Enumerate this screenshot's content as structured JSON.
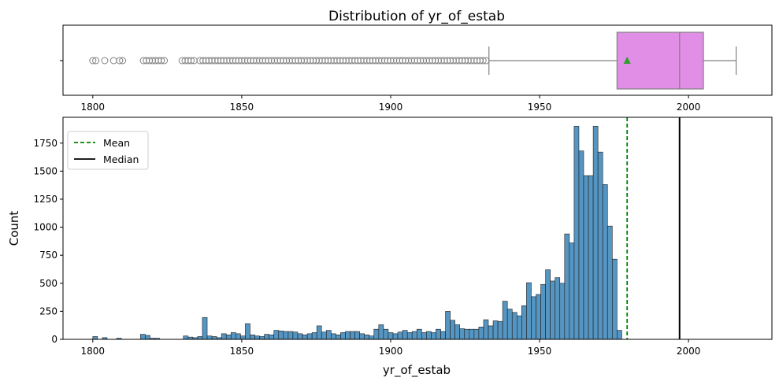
{
  "chart_data": [
    {
      "type": "box",
      "title": "Distribution of yr_of_estab",
      "xlim": [
        1790,
        2028
      ],
      "xticks": [
        1800,
        1850,
        1900,
        1950,
        2000
      ],
      "whisker_low": 1933,
      "q1": 1976,
      "median": 1997,
      "q3": 2005,
      "whisker_high": 2016,
      "mean": 1979.4,
      "outliers": [
        1800,
        1801,
        1804,
        1807,
        1809,
        1810,
        1817,
        1818,
        1819,
        1820,
        1821,
        1822,
        1823,
        1824,
        1830,
        1831,
        1832,
        1833,
        1834,
        1836,
        1837,
        1838,
        1839,
        1840,
        1841,
        1842,
        1843,
        1844,
        1845,
        1846,
        1847,
        1848,
        1849,
        1850,
        1851,
        1852,
        1853,
        1854,
        1855,
        1856,
        1857,
        1858,
        1859,
        1860,
        1861,
        1862,
        1863,
        1864,
        1865,
        1866,
        1867,
        1868,
        1869,
        1870,
        1871,
        1872,
        1873,
        1874,
        1875,
        1876,
        1877,
        1878,
        1879,
        1880,
        1881,
        1882,
        1883,
        1884,
        1885,
        1886,
        1887,
        1888,
        1889,
        1890,
        1891,
        1892,
        1893,
        1894,
        1895,
        1896,
        1897,
        1898,
        1899,
        1900,
        1901,
        1902,
        1903,
        1904,
        1905,
        1906,
        1907,
        1908,
        1909,
        1910,
        1911,
        1912,
        1913,
        1914,
        1915,
        1916,
        1917,
        1918,
        1919,
        1920,
        1921,
        1922,
        1923,
        1924,
        1925,
        1926,
        1927,
        1928,
        1929,
        1930,
        1931,
        1932
      ],
      "box_color": "#e08ee6",
      "mean_marker_color": "#2ca02c",
      "line_color": "#808080"
    },
    {
      "type": "histogram",
      "xlabel": "yr_of_estab",
      "ylabel": "Count",
      "xlim": [
        1790,
        2028
      ],
      "ylim": [
        0,
        1980
      ],
      "xticks": [
        1800,
        1850,
        1900,
        1950,
        2000
      ],
      "yticks": [
        0,
        250,
        500,
        750,
        1000,
        1250,
        1500,
        1750
      ],
      "bin_start": 1800,
      "bin_width": 1.6,
      "counts": [
        25,
        0,
        15,
        0,
        0,
        10,
        0,
        0,
        0,
        0,
        45,
        35,
        10,
        10,
        0,
        0,
        0,
        0,
        0,
        30,
        20,
        15,
        25,
        195,
        30,
        25,
        15,
        50,
        40,
        60,
        50,
        30,
        140,
        40,
        30,
        25,
        45,
        40,
        80,
        75,
        70,
        70,
        65,
        50,
        40,
        50,
        60,
        120,
        65,
        80,
        50,
        40,
        60,
        70,
        70,
        70,
        50,
        40,
        30,
        90,
        130,
        90,
        60,
        50,
        65,
        80,
        60,
        70,
        90,
        60,
        70,
        60,
        90,
        70,
        250,
        170,
        130,
        95,
        90,
        90,
        90,
        110,
        175,
        120,
        165,
        160,
        340,
        270,
        240,
        210,
        300,
        505,
        380,
        400,
        490,
        620,
        520,
        550,
        500,
        940,
        860,
        1900,
        1680,
        1460,
        1460,
        1900,
        1670,
        1380,
        1010,
        715,
        80
      ],
      "bar_color": "#4c8fbf",
      "mean": 1979.4,
      "median": 1997,
      "mean_color": "#008000",
      "median_color": "#000000",
      "legend": {
        "placement": "upper-left",
        "entries": [
          {
            "label": "Mean",
            "style": "dashed",
            "color": "#008000"
          },
          {
            "label": "Median",
            "style": "solid",
            "color": "#000000"
          }
        ]
      }
    }
  ]
}
